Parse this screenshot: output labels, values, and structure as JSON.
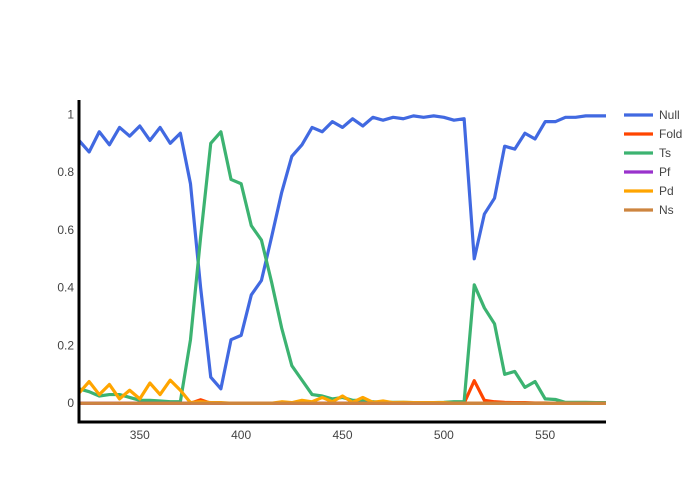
{
  "chart_data": {
    "type": "line",
    "xlim": [
      320,
      580
    ],
    "ylim": [
      -0.065,
      1.05
    ],
    "grid": false,
    "legend_placement": "right",
    "x_ticks": [
      350,
      400,
      450,
      500,
      550
    ],
    "y_ticks": [
      0,
      0.2,
      0.4,
      0.6,
      0.8,
      1
    ],
    "x_tick_labels": [
      "350",
      "400",
      "450",
      "500",
      "550"
    ],
    "y_tick_labels": [
      "0",
      "0.2",
      "0.4",
      "0.6",
      "0.8",
      "1"
    ],
    "x": [
      320,
      325,
      330,
      335,
      340,
      345,
      350,
      355,
      360,
      365,
      370,
      375,
      380,
      385,
      390,
      395,
      400,
      405,
      410,
      415,
      420,
      425,
      430,
      435,
      440,
      445,
      450,
      455,
      460,
      465,
      470,
      475,
      480,
      485,
      490,
      495,
      500,
      505,
      510,
      515,
      520,
      525,
      530,
      535,
      540,
      545,
      550,
      555,
      560,
      565,
      570,
      575,
      580
    ],
    "series": [
      {
        "name": "Null",
        "color": "#4169e1",
        "values": [
          0.91,
          0.87,
          0.94,
          0.895,
          0.955,
          0.925,
          0.96,
          0.91,
          0.955,
          0.9,
          0.935,
          0.76,
          0.4,
          0.09,
          0.05,
          0.22,
          0.235,
          0.375,
          0.425,
          0.575,
          0.73,
          0.855,
          0.895,
          0.955,
          0.94,
          0.975,
          0.955,
          0.985,
          0.96,
          0.99,
          0.98,
          0.99,
          0.985,
          0.995,
          0.99,
          0.995,
          0.99,
          0.98,
          0.985,
          0.5,
          0.655,
          0.71,
          0.89,
          0.88,
          0.935,
          0.915,
          0.975,
          0.975,
          0.99,
          0.99,
          0.995,
          0.995,
          0.995
        ]
      },
      {
        "name": "Fold",
        "color": "#ff4500",
        "values": [
          0,
          0,
          0,
          0,
          0,
          0,
          0,
          0,
          0,
          0,
          0,
          0,
          0.012,
          0,
          0,
          0,
          0,
          0,
          0,
          0,
          0,
          0,
          0,
          0,
          0,
          0,
          0,
          0,
          0,
          0,
          0,
          0,
          0,
          0,
          0,
          0,
          0,
          0,
          0,
          0.078,
          0.01,
          0.005,
          0.003,
          0.002,
          0.002,
          0.001,
          0.001,
          0,
          0,
          0,
          0,
          0,
          0
        ]
      },
      {
        "name": "Ts",
        "color": "#3cb371",
        "values": [
          0.05,
          0.04,
          0.025,
          0.03,
          0.03,
          0.02,
          0.01,
          0.01,
          0.008,
          0.005,
          0.005,
          0.22,
          0.575,
          0.9,
          0.94,
          0.775,
          0.76,
          0.615,
          0.565,
          0.42,
          0.26,
          0.13,
          0.08,
          0.03,
          0.025,
          0.015,
          0.02,
          0.01,
          0.01,
          0.005,
          0.003,
          0.003,
          0.003,
          0.002,
          0.002,
          0.002,
          0.003,
          0.005,
          0.005,
          0.41,
          0.33,
          0.275,
          0.1,
          0.11,
          0.055,
          0.075,
          0.015,
          0.013,
          0.003,
          0.003,
          0.003,
          0.002,
          0.002
        ]
      },
      {
        "name": "Pf",
        "color": "#9932cc",
        "values": [
          0,
          0,
          0,
          0,
          0,
          0,
          0,
          0,
          0,
          0,
          0,
          0,
          0,
          0,
          0,
          0,
          0,
          0,
          0,
          0,
          0,
          0,
          0,
          0,
          0,
          0,
          0,
          0,
          0,
          0,
          0,
          0,
          0,
          0,
          0,
          0,
          0,
          0,
          0,
          0,
          0,
          0,
          0,
          0,
          0,
          0,
          0,
          0,
          0,
          0,
          0,
          0,
          0
        ]
      },
      {
        "name": "Pd",
        "color": "#ffa500",
        "values": [
          0.035,
          0.075,
          0.03,
          0.065,
          0.015,
          0.045,
          0.015,
          0.07,
          0.03,
          0.08,
          0.045,
          0.002,
          0.005,
          0.002,
          0.002,
          0,
          0,
          0,
          0,
          0,
          0.005,
          0.002,
          0.01,
          0.005,
          0.02,
          0.005,
          0.025,
          0.003,
          0.02,
          0.003,
          0.008,
          0.002,
          0.003,
          0.002,
          0.002,
          0.002,
          0.002,
          0,
          0,
          0,
          0,
          0,
          0,
          0,
          0,
          0,
          0,
          0,
          0,
          0,
          0,
          0,
          0
        ]
      },
      {
        "name": "Ns",
        "color": "#cd853f",
        "values": [
          0,
          0,
          0,
          0,
          0,
          0,
          0,
          0,
          0,
          0,
          0,
          0,
          0,
          0,
          0,
          0,
          0,
          0,
          0,
          0,
          0,
          0,
          0,
          0,
          0,
          0,
          0,
          0,
          0,
          0,
          0,
          0,
          0,
          0,
          0,
          0,
          0,
          0,
          0,
          0,
          0,
          0,
          0,
          0,
          0,
          0,
          0,
          0,
          0,
          0,
          0,
          0,
          0
        ]
      }
    ]
  }
}
